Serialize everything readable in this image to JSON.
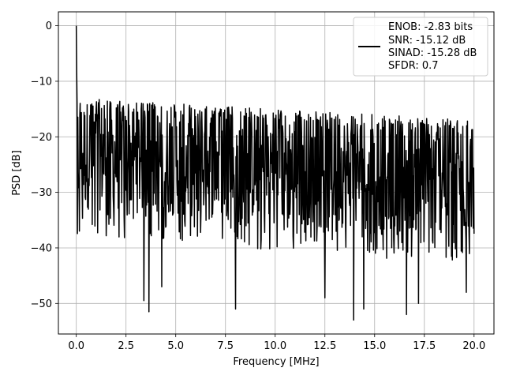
{
  "chart_data": {
    "type": "line",
    "title": "",
    "xlabel": "Frequency [MHz]",
    "ylabel": "PSD [dB]",
    "xlim": [
      -0.9,
      21.0
    ],
    "ylim": [
      -55.5,
      2.5
    ],
    "x_ticks": [
      0.0,
      2.5,
      5.0,
      7.5,
      10.0,
      12.5,
      15.0,
      17.5,
      20.0
    ],
    "x_tick_labels": [
      "0.0",
      "2.5",
      "5.0",
      "7.5",
      "10.0",
      "12.5",
      "15.0",
      "17.5",
      "20.0"
    ],
    "y_ticks": [
      0,
      -10,
      -20,
      -30,
      -40,
      -50
    ],
    "y_tick_labels": [
      "0",
      "−10",
      "−20",
      "−30",
      "−40",
      "−50"
    ],
    "grid": true,
    "legend_position": "top-right",
    "series_color": "#000000",
    "series": [
      {
        "name": "",
        "x_range": [
          0.0,
          20.0
        ],
        "points": 1025,
        "peak": {
          "x": 0.0,
          "y": 0.0
        },
        "upper_envelope_db": [
          -13,
          -17
        ],
        "lower_envelope_db": [
          -33,
          -38
        ],
        "mean_db": -25,
        "deep_notches": [
          {
            "x": 3.4,
            "y": -49.5
          },
          {
            "x": 3.65,
            "y": -51.5
          },
          {
            "x": 4.3,
            "y": -47
          },
          {
            "x": 8.0,
            "y": -51
          },
          {
            "x": 12.5,
            "y": -49
          },
          {
            "x": 13.95,
            "y": -53
          },
          {
            "x": 14.45,
            "y": -51
          },
          {
            "x": 16.6,
            "y": -52
          },
          {
            "x": 17.2,
            "y": -50
          },
          {
            "x": 19.6,
            "y": -48
          }
        ]
      }
    ],
    "legend_entries": [
      "ENOB: -2.83 bits",
      "SNR: -15.12 dB",
      "SINAD: -15.28 dB",
      "SFDR: 0.7"
    ]
  }
}
